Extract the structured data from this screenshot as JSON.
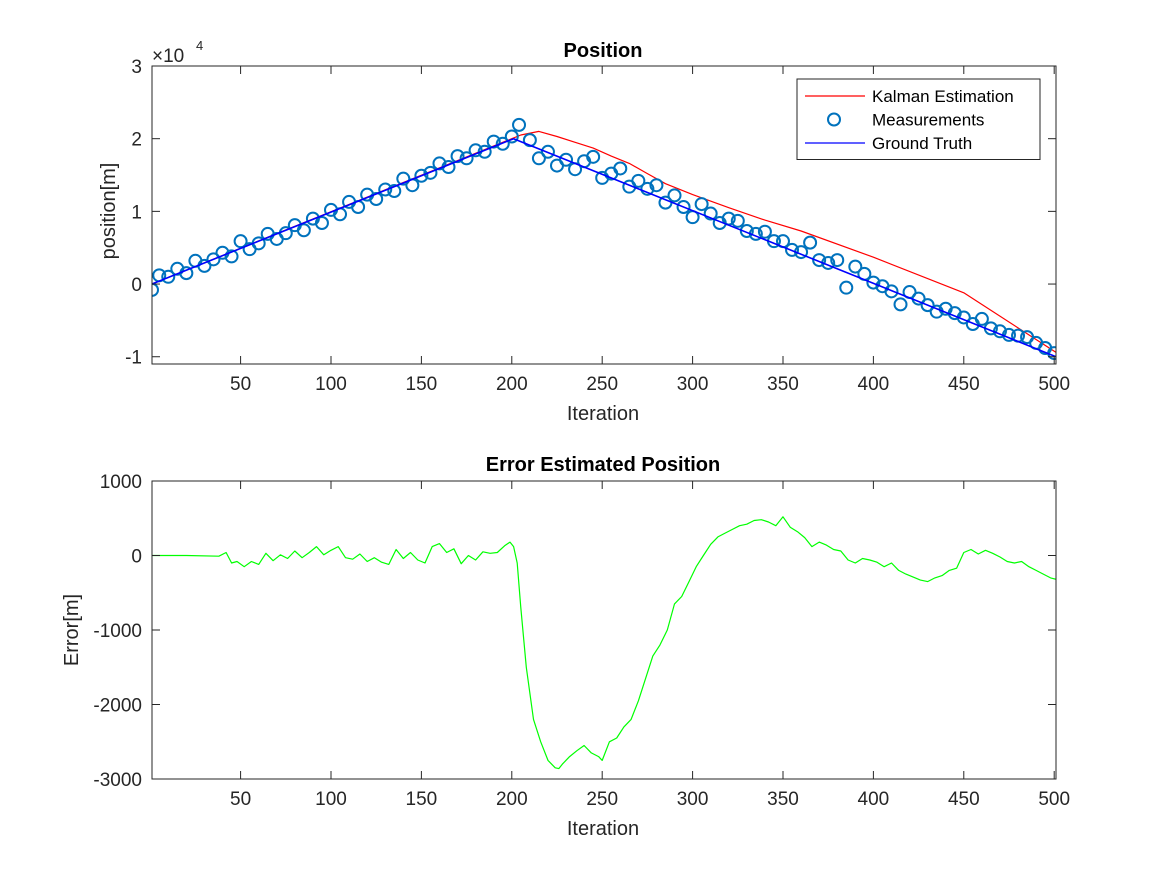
{
  "chart_data": [
    {
      "type": "scatter",
      "title": "Position",
      "xlabel": "Iteration",
      "ylabel": "position[m]",
      "exponent_label": "×10",
      "exponent_power": "4",
      "xlim": [
        1,
        501
      ],
      "ylim": [
        -11000,
        30000
      ],
      "xticks": [
        50,
        100,
        150,
        200,
        250,
        300,
        350,
        400,
        450,
        500
      ],
      "xtick_labels": [
        "50",
        "100",
        "150",
        "200",
        "250",
        "300",
        "350",
        "400",
        "450",
        "500"
      ],
      "yticks": [
        -10000,
        0,
        10000,
        20000,
        30000
      ],
      "ytick_labels": [
        "-1",
        "0",
        "1",
        "2",
        "3"
      ],
      "legend_position": "top-right",
      "series": [
        {
          "name": "Kalman Estimation",
          "kind": "line",
          "color": "#ff0000",
          "x": [
            1,
            200,
            205,
            215,
            225,
            235,
            245,
            255,
            265,
            275,
            285,
            300,
            320,
            340,
            360,
            400,
            450,
            501
          ],
          "y": [
            0,
            20000,
            20500,
            21000,
            20300,
            19500,
            18700,
            17600,
            16600,
            15200,
            13800,
            12300,
            10500,
            8800,
            7300,
            3700,
            -1200,
            -9400
          ]
        },
        {
          "name": "Measurements",
          "kind": "scatter",
          "color": "#0072bd",
          "x": [
            1,
            5,
            10,
            15,
            20,
            25,
            30,
            35,
            40,
            45,
            50,
            55,
            60,
            65,
            70,
            75,
            80,
            85,
            90,
            95,
            100,
            105,
            110,
            115,
            120,
            125,
            130,
            135,
            140,
            145,
            150,
            155,
            160,
            165,
            170,
            175,
            180,
            185,
            190,
            195,
            200,
            204,
            210,
            215,
            220,
            225,
            230,
            235,
            240,
            245,
            250,
            255,
            260,
            265,
            270,
            275,
            280,
            285,
            290,
            295,
            300,
            305,
            310,
            315,
            320,
            325,
            330,
            335,
            340,
            345,
            350,
            355,
            360,
            365,
            370,
            375,
            380,
            385,
            390,
            395,
            400,
            405,
            410,
            415,
            420,
            425,
            430,
            435,
            440,
            445,
            450,
            455,
            460,
            465,
            470,
            475,
            480,
            485,
            490,
            495,
            500
          ],
          "y": [
            -800,
            1200,
            1000,
            2100,
            1500,
            3200,
            2500,
            3400,
            4300,
            3800,
            5900,
            4800,
            5600,
            6900,
            6200,
            7000,
            8100,
            7400,
            9000,
            8400,
            10200,
            9600,
            11300,
            10600,
            12300,
            11700,
            13000,
            12800,
            14500,
            13600,
            14900,
            15300,
            16600,
            16100,
            17600,
            17300,
            18400,
            18200,
            19600,
            19300,
            20300,
            21900,
            19800,
            17300,
            18200,
            16300,
            17100,
            15800,
            16900,
            17500,
            14600,
            15200,
            15900,
            13400,
            14200,
            13100,
            13600,
            11200,
            12200,
            10600,
            9200,
            11000,
            9700,
            8400,
            9000,
            8700,
            7300,
            6900,
            7200,
            5900,
            5900,
            4700,
            4400,
            5700,
            3300,
            2900,
            3300,
            -500,
            2400,
            1400,
            200,
            -300,
            -1000,
            -2800,
            -1100,
            -2000,
            -2900,
            -3800,
            -3400,
            -4000,
            -4600,
            -5500,
            -4800,
            -6100,
            -6500,
            -7000,
            -7100,
            -7300,
            -8100,
            -8800,
            -9500
          ]
        },
        {
          "name": "Ground Truth",
          "kind": "line",
          "color": "#0000ff",
          "x": [
            1,
            201,
            501
          ],
          "y": [
            0,
            20000,
            -10000
          ]
        }
      ]
    },
    {
      "type": "line",
      "title": "Error Estimated Position",
      "xlabel": "Iteration",
      "ylabel": "Error[m]",
      "xlim": [
        1,
        501
      ],
      "ylim": [
        -3000,
        1000
      ],
      "xticks": [
        50,
        100,
        150,
        200,
        250,
        300,
        350,
        400,
        450,
        500
      ],
      "xtick_labels": [
        "50",
        "100",
        "150",
        "200",
        "250",
        "300",
        "350",
        "400",
        "450",
        "500"
      ],
      "yticks": [
        -3000,
        -2000,
        -1000,
        0,
        1000
      ],
      "ytick_labels": [
        "-3000",
        "-2000",
        "-1000",
        "0",
        "1000"
      ],
      "series": [
        {
          "color": "#00ff00",
          "x": [
            1,
            20,
            38,
            42,
            45,
            48,
            52,
            56,
            60,
            64,
            68,
            72,
            76,
            80,
            84,
            88,
            92,
            96,
            100,
            104,
            108,
            112,
            116,
            120,
            124,
            128,
            132,
            136,
            140,
            144,
            148,
            152,
            156,
            160,
            164,
            168,
            172,
            176,
            180,
            184,
            188,
            192,
            196,
            199,
            201,
            203,
            205,
            208,
            212,
            216,
            220,
            224,
            226,
            228,
            232,
            236,
            240,
            244,
            248,
            250,
            254,
            258,
            262,
            266,
            270,
            274,
            278,
            282,
            286,
            290,
            294,
            298,
            302,
            306,
            310,
            314,
            318,
            322,
            326,
            330,
            334,
            338,
            342,
            346,
            350,
            354,
            358,
            362,
            366,
            370,
            374,
            378,
            382,
            386,
            390,
            394,
            398,
            402,
            406,
            410,
            414,
            418,
            422,
            426,
            430,
            434,
            438,
            442,
            446,
            450,
            454,
            458,
            462,
            466,
            470,
            474,
            478,
            482,
            486,
            490,
            494,
            498,
            501
          ],
          "y": [
            0,
            0,
            -10,
            40,
            -100,
            -80,
            -150,
            -80,
            -120,
            30,
            -70,
            10,
            -40,
            60,
            -30,
            40,
            120,
            10,
            70,
            120,
            -30,
            -50,
            20,
            -80,
            -30,
            -90,
            -120,
            80,
            -40,
            40,
            -60,
            -100,
            120,
            160,
            40,
            90,
            -110,
            0,
            -60,
            50,
            30,
            40,
            130,
            180,
            120,
            -100,
            -700,
            -1500,
            -2200,
            -2500,
            -2750,
            -2850,
            -2860,
            -2800,
            -2700,
            -2620,
            -2550,
            -2650,
            -2700,
            -2750,
            -2500,
            -2450,
            -2300,
            -2200,
            -1950,
            -1650,
            -1350,
            -1200,
            -1000,
            -650,
            -550,
            -350,
            -150,
            0,
            150,
            250,
            300,
            350,
            400,
            420,
            470,
            480,
            450,
            400,
            520,
            380,
            320,
            240,
            120,
            180,
            140,
            80,
            60,
            -60,
            -100,
            -40,
            -60,
            -90,
            -150,
            -100,
            -200,
            -250,
            -290,
            -330,
            -350,
            -300,
            -270,
            -200,
            -170,
            40,
            80,
            20,
            70,
            30,
            -20,
            -80,
            -100,
            -80,
            -150,
            -200,
            -250,
            -300,
            -320
          ]
        }
      ]
    }
  ]
}
